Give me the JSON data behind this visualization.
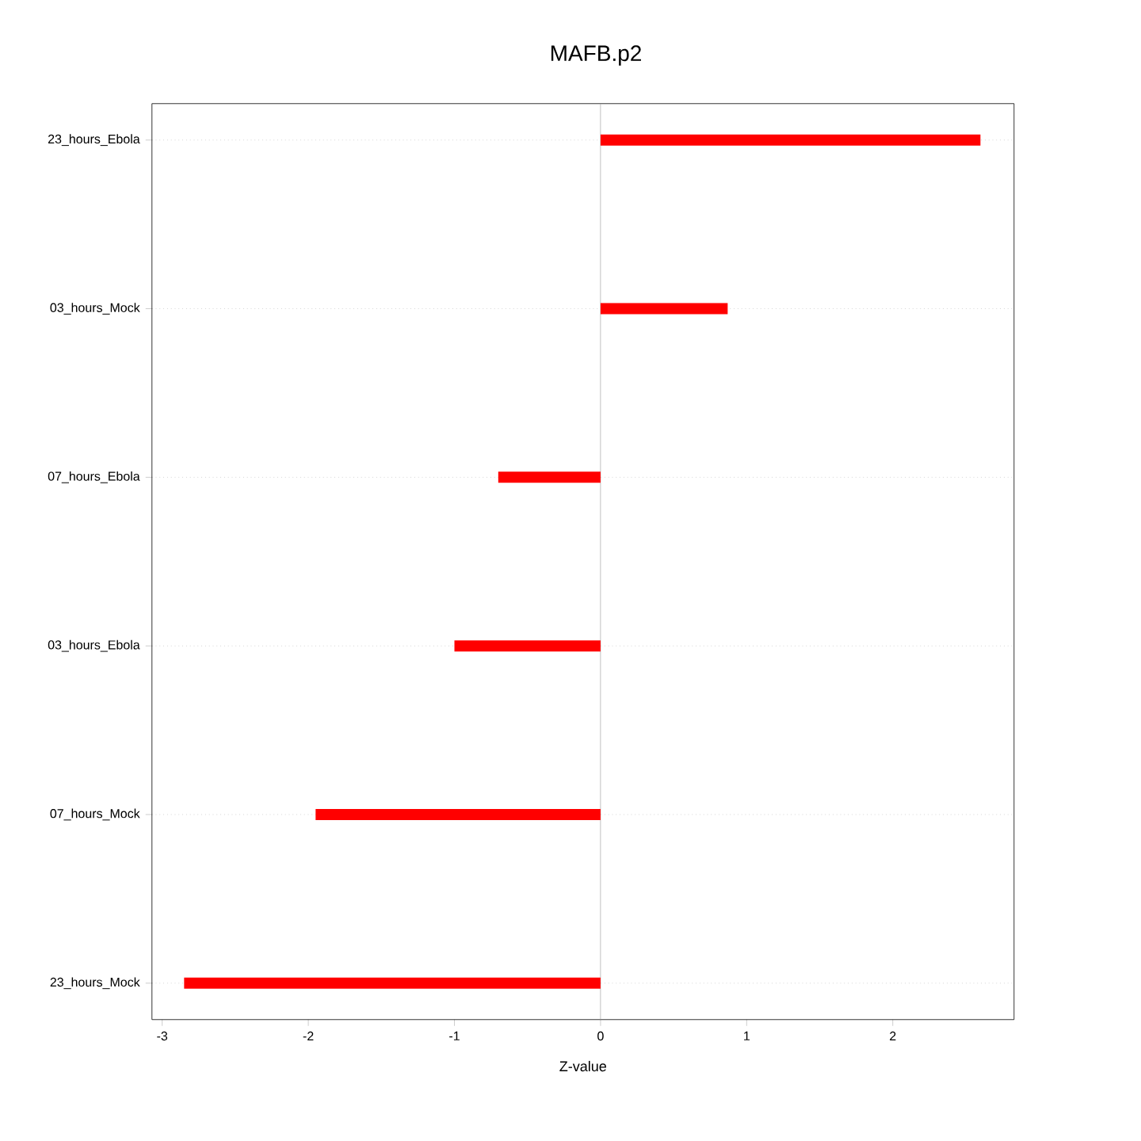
{
  "chart_data": {
    "type": "bar",
    "orientation": "horizontal",
    "title": "MAFB.p2",
    "xlabel": "Z-value",
    "categories": [
      "23_hours_Ebola",
      "03_hours_Mock",
      "07_hours_Ebola",
      "03_hours_Ebola",
      "07_hours_Mock",
      "23_hours_Mock"
    ],
    "values": [
      2.6,
      0.87,
      -0.7,
      -1.0,
      -1.95,
      -2.85
    ],
    "color": "#ff0000",
    "xlim": [
      -3.07,
      2.83
    ],
    "xticks": [
      -3,
      -2,
      -1,
      0,
      1,
      2
    ],
    "grid": "y",
    "ref_lines": [
      {
        "axis": "x",
        "value": 0,
        "color": "#aaaaaa"
      }
    ]
  }
}
